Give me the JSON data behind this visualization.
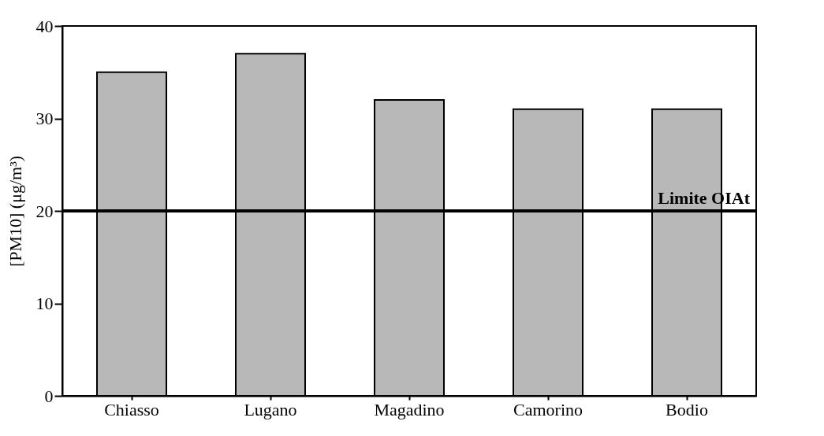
{
  "chart_data": {
    "type": "bar",
    "ylabel": "[PM10] (μg/m³)",
    "categories": [
      "Chiasso",
      "Lugano",
      "Magadino",
      "Camorino",
      "Bodio"
    ],
    "values": [
      35,
      37,
      32,
      31,
      31
    ],
    "color": "#b8b8b8",
    "ylim": [
      0,
      40
    ],
    "yticks": [
      0,
      10,
      20,
      30,
      40
    ],
    "grid": false,
    "ref_lines": [
      {
        "axis": "y",
        "value": 20,
        "label": "Limite OIAt",
        "color": "#000000"
      }
    ]
  }
}
